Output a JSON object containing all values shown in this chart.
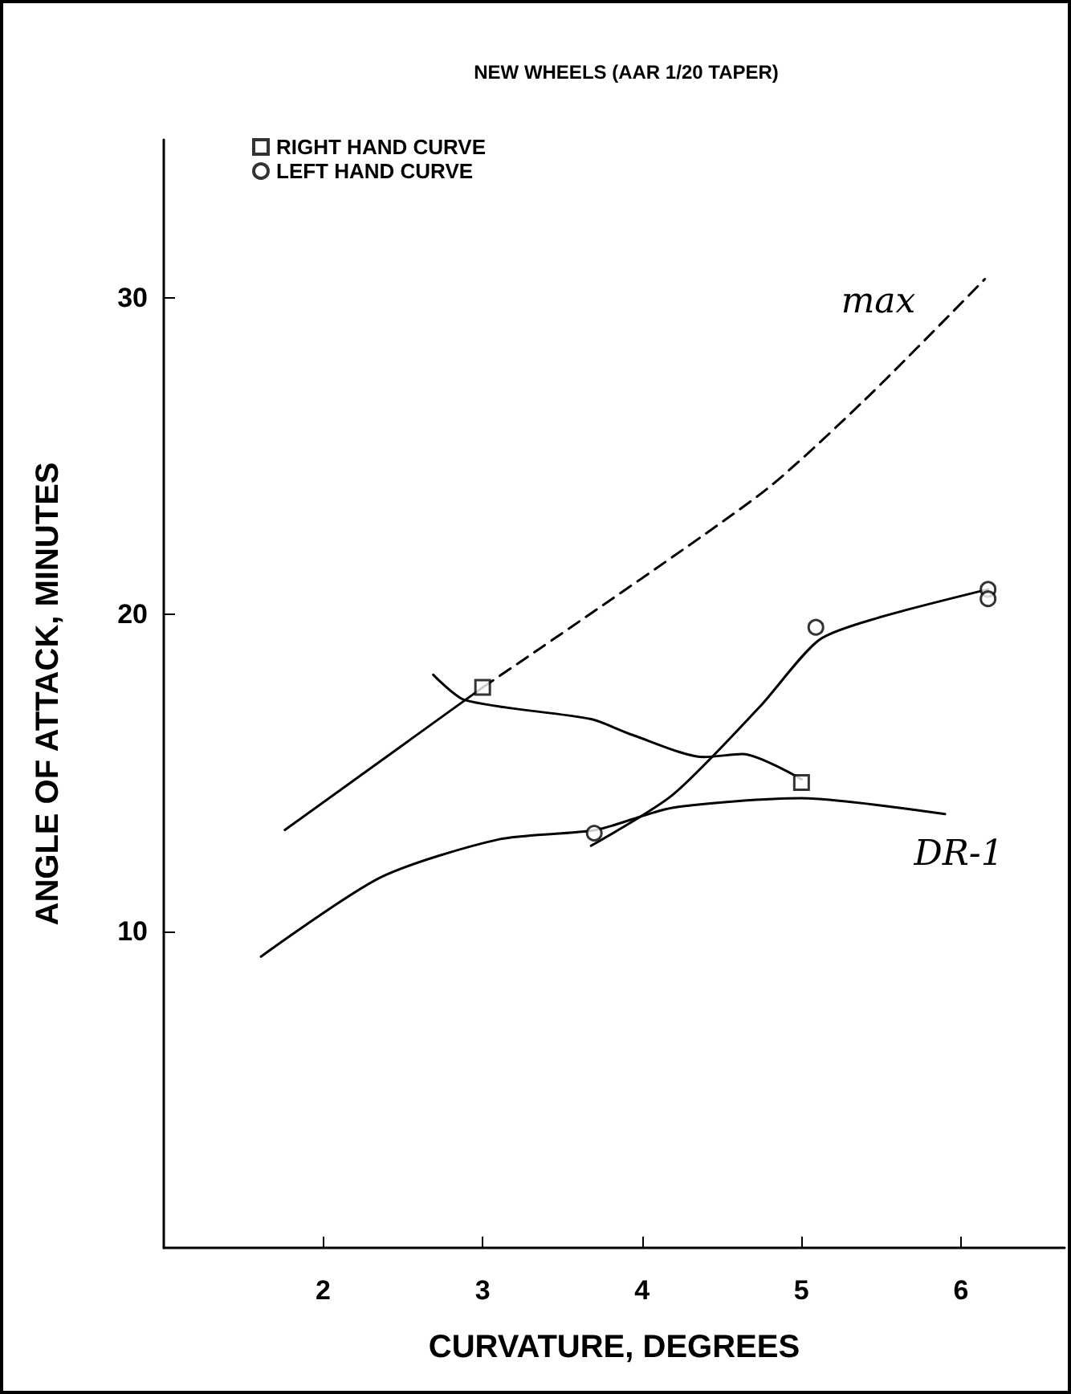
{
  "chart_data": {
    "type": "line",
    "title": "NEW WHEELS (AAR 1/20 TAPER)",
    "xlabel": "CURVATURE, DEGREES",
    "ylabel": "ANGLE OF ATTACK, MINUTES",
    "xlim": [
      1,
      6.65
    ],
    "xticks": [
      2,
      3,
      4,
      5,
      6
    ],
    "ylim": [
      0,
      35
    ],
    "yticks": [
      10,
      20,
      30
    ],
    "grid": false,
    "legend": "top left",
    "series": [
      {
        "name": "RIGHT HAND CURVE",
        "type": "scatter",
        "marker": "square",
        "color": "#000000",
        "x": [
          3.0,
          5.0
        ],
        "values": [
          17.7,
          14.7
        ]
      },
      {
        "name": "LEFT HAND CURVE",
        "type": "scatter",
        "marker": "circle",
        "color": "#000000",
        "x": [
          3.7,
          5.09,
          6.17,
          6.17
        ],
        "values": [
          13.1,
          19.6,
          20.8,
          20.5
        ]
      },
      {
        "marker": "none",
        "line_style": "solid",
        "color": "#000000",
        "x": [
          1.76,
          3.0
        ],
        "values": [
          13.2,
          17.7
        ]
      },
      {
        "marker": "none",
        "line_style": "dashed",
        "color": "#000000",
        "x": [
          3.0,
          4.74,
          5.4,
          6.15
        ],
        "values": [
          17.7,
          23.8,
          26.8,
          30.6
        ]
      },
      {
        "marker": "none",
        "line_style": "solid",
        "color": "#000000",
        "x": [
          1.61,
          2.36,
          3.1,
          3.71,
          4.19,
          5.0,
          5.9
        ],
        "values": [
          9.2,
          11.7,
          12.9,
          13.2,
          13.9,
          14.2,
          13.7
        ]
      },
      {
        "marker": "none",
        "line_style": "solid",
        "color": "#000000",
        "x": [
          2.69,
          2.89,
          3.68,
          3.94,
          4.39,
          4.63,
          5.0
        ],
        "values": [
          18.1,
          17.3,
          16.7,
          16.2,
          15.5,
          15.6,
          14.8
        ]
      },
      {
        "marker": "none",
        "line_style": "solid",
        "color": "#000000",
        "x": [
          3.68,
          4.19,
          4.74,
          5.11,
          5.48,
          6.17
        ],
        "values": [
          12.7,
          14.3,
          17.1,
          19.2,
          19.9,
          20.8
        ]
      }
    ],
    "annotations": [
      "max",
      "DR-1"
    ]
  }
}
